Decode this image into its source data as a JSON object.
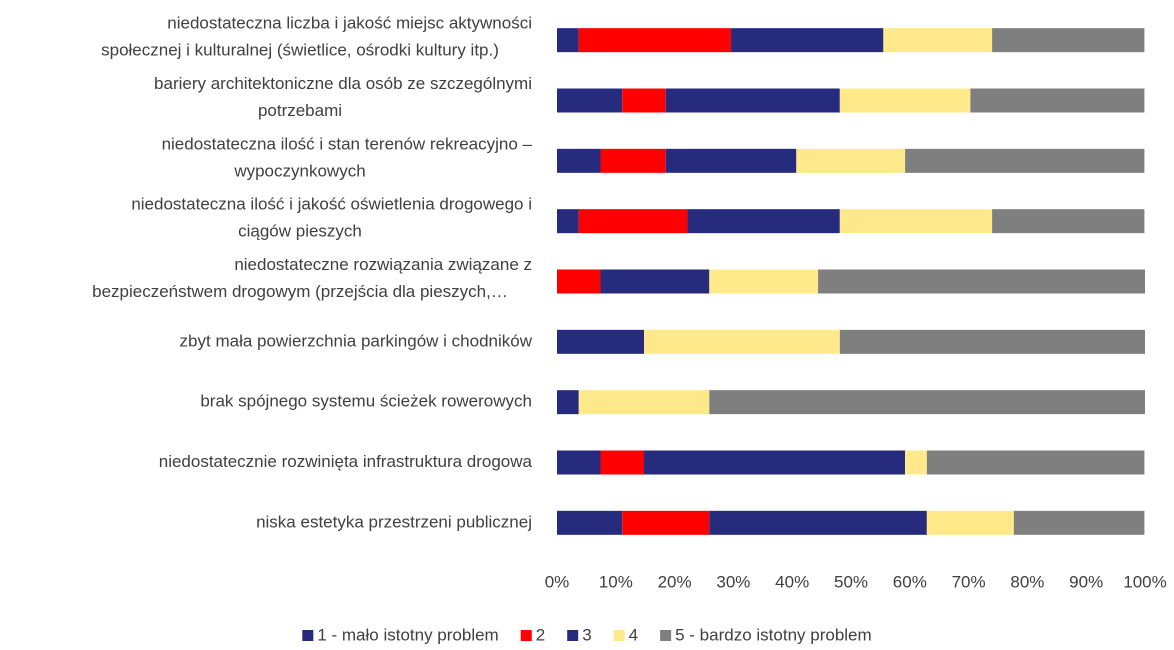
{
  "chart_data": {
    "type": "stacked_bar_horizontal",
    "categories": [
      [
        "niedostateczna liczba i jakość miejsc aktywności",
        "społecznej i kulturalnej (świetlice, ośrodki kultury itp.)"
      ],
      [
        "bariery architektoniczne dla osób ze szczególnymi",
        "potrzebami"
      ],
      [
        "niedostateczna ilość i stan terenów rekreacyjno –",
        "wypoczynkowych"
      ],
      [
        "niedostateczna ilość i jakość oświetlenia drogowego i",
        "ciągów pieszych"
      ],
      [
        "niedostateczne rozwiązania związane z",
        "bezpieczeństwem drogowym (przejścia dla pieszych,…"
      ],
      [
        "zbyt mała powierzchnia parkingów i chodników"
      ],
      [
        "brak spójnego systemu ścieżek rowerowych"
      ],
      [
        "niedostatecznie rozwinięta infrastruktura drogowa"
      ],
      [
        "niska estetyka przestrzeni publicznej"
      ]
    ],
    "series": [
      {
        "name": "1 - mało istotny problem",
        "color": "#262b7d",
        "values": [
          3.7,
          11.1,
          7.4,
          3.7,
          0,
          0,
          3.7,
          7.4,
          11.1
        ]
      },
      {
        "name": "2",
        "color": "#ff0000",
        "values": [
          25.9,
          7.4,
          11.1,
          18.5,
          7.4,
          0,
          0,
          7.4,
          14.8
        ]
      },
      {
        "name": "3",
        "color": "#262b7d",
        "values": [
          25.9,
          29.6,
          22.2,
          25.9,
          18.5,
          14.8,
          0,
          44.4,
          37.0
        ]
      },
      {
        "name": "4",
        "color": "#ffe98a",
        "values": [
          18.5,
          22.2,
          18.5,
          25.9,
          18.5,
          33.3,
          22.2,
          3.7,
          14.8
        ]
      },
      {
        "name": "5 - bardzo istotny problem",
        "color": "#7f7f7f",
        "values": [
          25.9,
          29.6,
          40.7,
          25.9,
          55.6,
          51.9,
          74.1,
          37.0,
          22.2
        ]
      }
    ],
    "xlim": [
      0,
      100
    ],
    "xticks": [
      {
        "value": 0,
        "label": "0%"
      },
      {
        "value": 10,
        "label": "10%"
      },
      {
        "value": 20,
        "label": "20%"
      },
      {
        "value": 30,
        "label": "30%"
      },
      {
        "value": 40,
        "label": "40%"
      },
      {
        "value": 50,
        "label": "50%"
      },
      {
        "value": 60,
        "label": "60%"
      },
      {
        "value": 70,
        "label": "70%"
      },
      {
        "value": 80,
        "label": "80%"
      },
      {
        "value": 90,
        "label": "90%"
      },
      {
        "value": 100,
        "label": "100%"
      }
    ],
    "legend": "bottom"
  }
}
